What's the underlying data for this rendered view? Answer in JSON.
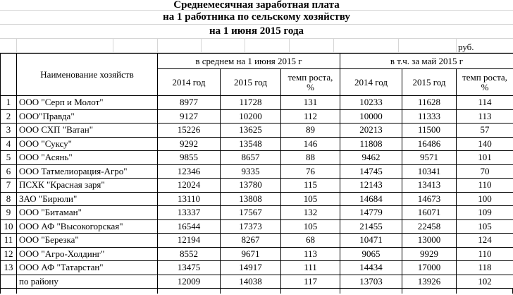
{
  "unit_label": "руб.",
  "title": {
    "line1": "Среднемесячная заработная плата",
    "line2": "на 1 работника по сельскому хозяйству",
    "line3": "на 1 июня 2015 года"
  },
  "table": {
    "name_header": "Наименование хозяйств",
    "group1": "в среднем на 1 июня 2015 г",
    "group2": "в т.ч. за май 2015 г",
    "sub_headers": [
      "2014 год",
      "2015 год",
      "темп роста,\n%",
      "2014 год",
      "2015 год",
      "темп роста,\n%"
    ],
    "rows": [
      {
        "num": "1",
        "name": "ООО \"Серп и Молот\"",
        "values": [
          8977,
          11728,
          131,
          10233,
          11628,
          114
        ]
      },
      {
        "num": "2",
        "name": "ООО\"Правда\"",
        "values": [
          9127,
          10200,
          112,
          10000,
          11333,
          113
        ]
      },
      {
        "num": "3",
        "name": "ООО СХП \"Ватан\"",
        "values": [
          15226,
          13625,
          89,
          20213,
          11500,
          57
        ]
      },
      {
        "num": "4",
        "name": "ООО \"Суксу\"",
        "values": [
          9292,
          13548,
          146,
          11808,
          16486,
          140
        ]
      },
      {
        "num": "5",
        "name": "ООО \"Асянь\"",
        "values": [
          9855,
          8657,
          88,
          9462,
          9571,
          101
        ]
      },
      {
        "num": "6",
        "name": "ООО Татмелиорация-Агро\"",
        "values": [
          12346,
          9335,
          76,
          14745,
          10341,
          70
        ]
      },
      {
        "num": "7",
        "name": "ПСХК \"Красная заря\"",
        "values": [
          12024,
          13780,
          115,
          12143,
          13413,
          110
        ]
      },
      {
        "num": "8",
        "name": "ЗАО \"Бирюли\"",
        "values": [
          13110,
          13808,
          105,
          14684,
          14673,
          100
        ]
      },
      {
        "num": "9",
        "name": "ООО \"Битаман\"",
        "values": [
          13337,
          17567,
          132,
          14779,
          16071,
          109
        ]
      },
      {
        "num": "10",
        "name": "ООО АФ \"Высокогорская\"",
        "values": [
          16544,
          17373,
          105,
          21455,
          22458,
          105
        ]
      },
      {
        "num": "11",
        "name": "ООО \"Березка\"",
        "values": [
          12194,
          8267,
          68,
          10471,
          13000,
          124
        ]
      },
      {
        "num": "12",
        "name": "ООО \"Агро-Холдинг\"",
        "values": [
          8552,
          9671,
          113,
          9065,
          9929,
          110
        ]
      },
      {
        "num": "13",
        "name": "ООО АФ \"Татарстан\"",
        "values": [
          13475,
          14917,
          111,
          14434,
          17000,
          118
        ]
      },
      {
        "num": "",
        "name": "по району",
        "values": [
          12009,
          14038,
          117,
          13703,
          13926,
          102
        ]
      }
    ]
  }
}
